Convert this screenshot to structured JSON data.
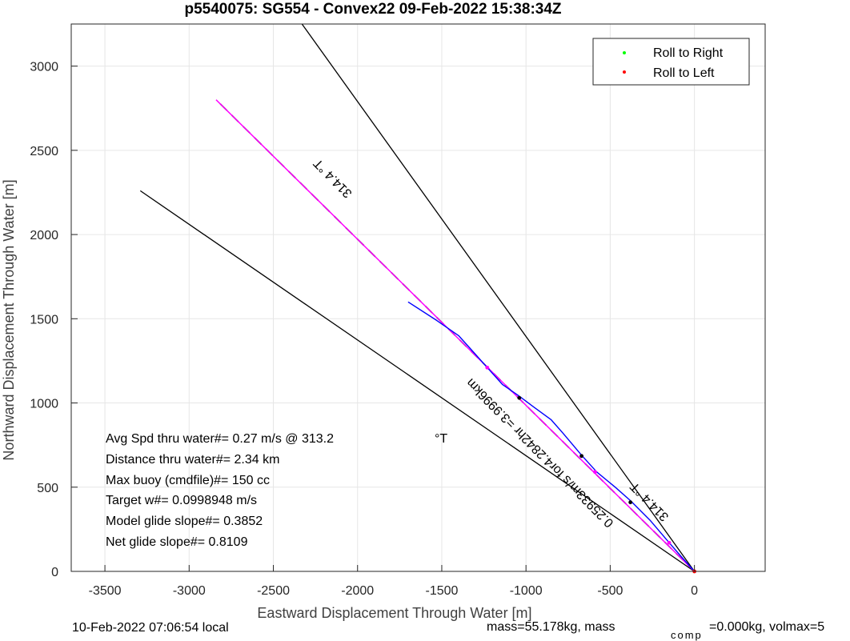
{
  "chart_data": {
    "type": "line",
    "title": "p5540075: SG554 - Convex22 09-Feb-2022 15:38:34Z",
    "xlabel": "Eastward Displacement Through Water [m]",
    "ylabel": "Northward Displacement Through Water [m]",
    "xlim": [
      -3700,
      420
    ],
    "ylim": [
      0,
      3250
    ],
    "xticks": [
      -3500,
      -3000,
      -2500,
      -2000,
      -1500,
      -1000,
      -500,
      0
    ],
    "yticks": [
      0,
      500,
      1000,
      1500,
      2000,
      2500,
      3000
    ],
    "grid": true,
    "legend": {
      "placement": "top-right",
      "entries": [
        {
          "label": "Roll to Right",
          "color": "#00ff00"
        },
        {
          "label": "Roll to Left",
          "color": "#ff0000"
        }
      ]
    },
    "series": [
      {
        "role": "cone-upper",
        "color": "#000000",
        "points": [
          [
            0,
            0
          ],
          [
            -2330,
            3250
          ]
        ]
      },
      {
        "role": "cone-lower",
        "color": "#000000",
        "points": [
          [
            0,
            0
          ],
          [
            -3290,
            2260
          ]
        ]
      },
      {
        "role": "heading-dashed",
        "color": "#000000",
        "points": [
          [
            0,
            0
          ],
          [
            -2840,
            2800
          ]
        ]
      },
      {
        "role": "model-track",
        "color": "#ff00ff",
        "points": [
          [
            0,
            0
          ],
          [
            -2840,
            2800
          ]
        ]
      },
      {
        "role": "measured-track",
        "color": "#0000ff",
        "points": [
          [
            0,
            0
          ],
          [
            -80,
            90
          ],
          [
            -150,
            170
          ],
          [
            -260,
            300
          ],
          [
            -380,
            420
          ],
          [
            -470,
            500
          ],
          [
            -580,
            590
          ],
          [
            -670,
            690
          ],
          [
            -780,
            820
          ],
          [
            -850,
            900
          ],
          [
            -960,
            980
          ],
          [
            -1040,
            1040
          ],
          [
            -1140,
            1110
          ],
          [
            -1230,
            1210
          ],
          [
            -1310,
            1300
          ],
          [
            -1400,
            1400
          ],
          [
            -1530,
            1490
          ],
          [
            -1700,
            1600
          ]
        ]
      }
    ],
    "markers": [
      {
        "x": 0,
        "y": 0,
        "color": "#ff0000"
      },
      {
        "x": -150,
        "y": 170,
        "color": "#ff00ff"
      },
      {
        "x": -380,
        "y": 410,
        "color": "#000000"
      },
      {
        "x": -590,
        "y": 590,
        "color": "#ff00ff"
      },
      {
        "x": -670,
        "y": 685,
        "color": "#000000"
      },
      {
        "x": -1040,
        "y": 1030,
        "color": "#000000"
      },
      {
        "x": -1230,
        "y": 1210,
        "color": "#ff00ff"
      }
    ],
    "annotations": [
      {
        "text": "314.4 °T",
        "x": -2130,
        "y": 2350,
        "angle": 45.4
      },
      {
        "text": "314.4 °T",
        "x": -250,
        "y": 430,
        "angle": 45.4
      },
      {
        "text": "0.25933m/s for4.2842hr =3.9996km",
        "x": -900,
        "y": 720,
        "angle": 45.4
      }
    ],
    "stats": [
      {
        "label": "Avg Spd thru water#=  0.27 m/s @ 313.2",
        "unit": "°T"
      },
      {
        "label": "Distance thru water#=  2.34 km"
      },
      {
        "label": "Max buoy (cmdfile)#= 150 cc"
      },
      {
        "label": "Target w#= 0.0998948 m/s"
      },
      {
        "label": "Model glide slope#= 0.3852"
      },
      {
        "label": "Net glide slope#= 0.8109"
      }
    ],
    "footer": {
      "local_time": "10-Feb-2022 07:06:54 local",
      "mass_text": "mass=55.178kg, mass",
      "mass_sub": "comp",
      "mass_tail": "=0.000kg, volmax=5"
    }
  }
}
